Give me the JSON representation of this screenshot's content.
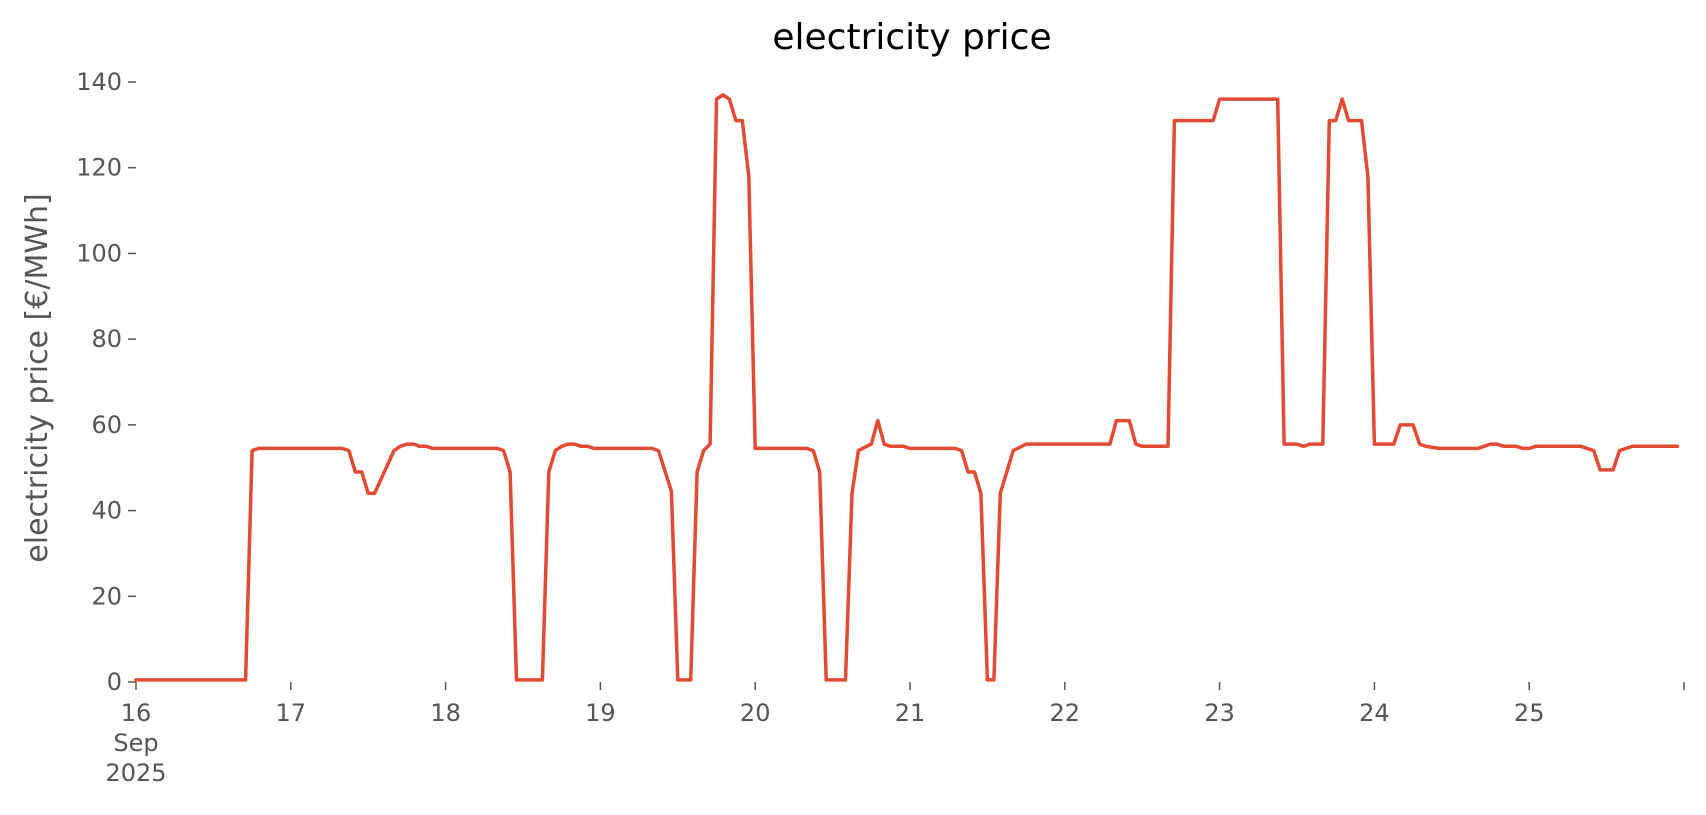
{
  "chart_data": {
    "type": "line",
    "title": "electricity price",
    "xlabel": "",
    "ylabel": "electricity price [€/MWh]",
    "ylim": [
      0,
      140
    ],
    "xlim": [
      "2025-09-16T00:00",
      "2025-09-26T00:00"
    ],
    "grid": false,
    "legend": "none",
    "y_ticks": [
      0,
      20,
      40,
      60,
      80,
      100,
      120,
      140
    ],
    "x_ticks": [
      {
        "date": "2025-09-16",
        "label": "16",
        "sublabels": [
          "Sep",
          "2025"
        ]
      },
      {
        "date": "2025-09-17",
        "label": "17",
        "sublabels": []
      },
      {
        "date": "2025-09-18",
        "label": "18",
        "sublabels": []
      },
      {
        "date": "2025-09-19",
        "label": "19",
        "sublabels": []
      },
      {
        "date": "2025-09-20",
        "label": "20",
        "sublabels": []
      },
      {
        "date": "2025-09-21",
        "label": "21",
        "sublabels": []
      },
      {
        "date": "2025-09-22",
        "label": "22",
        "sublabels": []
      },
      {
        "date": "2025-09-23",
        "label": "23",
        "sublabels": []
      },
      {
        "date": "2025-09-24",
        "label": "24",
        "sublabels": []
      },
      {
        "date": "2025-09-25",
        "label": "25",
        "sublabels": []
      },
      {
        "date": "2025-09-26",
        "label": "",
        "sublabels": []
      }
    ],
    "series": [
      {
        "color": "#e24a33",
        "points": [
          [
            "2025-09-16T00:00",
            0.5
          ],
          [
            "2025-09-16T17:00",
            0.5
          ],
          [
            "2025-09-16T18:00",
            54
          ],
          [
            "2025-09-16T19:00",
            54.5
          ],
          [
            "2025-09-17T08:00",
            54.5
          ],
          [
            "2025-09-17T09:00",
            54
          ],
          [
            "2025-09-17T10:00",
            49
          ],
          [
            "2025-09-17T11:00",
            49
          ],
          [
            "2025-09-17T12:00",
            44
          ],
          [
            "2025-09-17T13:00",
            44
          ],
          [
            "2025-09-17T16:00",
            54
          ],
          [
            "2025-09-17T17:00",
            55
          ],
          [
            "2025-09-17T18:00",
            55.5
          ],
          [
            "2025-09-17T19:00",
            55.5
          ],
          [
            "2025-09-17T20:00",
            55
          ],
          [
            "2025-09-17T21:00",
            55
          ],
          [
            "2025-09-17T22:00",
            54.5
          ],
          [
            "2025-09-18T08:00",
            54.5
          ],
          [
            "2025-09-18T09:00",
            54
          ],
          [
            "2025-09-18T10:00",
            49
          ],
          [
            "2025-09-18T11:00",
            0.5
          ],
          [
            "2025-09-18T15:00",
            0.5
          ],
          [
            "2025-09-18T16:00",
            49
          ],
          [
            "2025-09-18T17:00",
            54
          ],
          [
            "2025-09-18T18:00",
            55
          ],
          [
            "2025-09-18T19:00",
            55.5
          ],
          [
            "2025-09-18T20:00",
            55.5
          ],
          [
            "2025-09-18T21:00",
            55
          ],
          [
            "2025-09-18T22:00",
            55
          ],
          [
            "2025-09-18T23:00",
            54.5
          ],
          [
            "2025-09-19T08:00",
            54.5
          ],
          [
            "2025-09-19T09:00",
            54
          ],
          [
            "2025-09-19T11:00",
            44.5
          ],
          [
            "2025-09-19T12:00",
            0.5
          ],
          [
            "2025-09-19T14:00",
            0.5
          ],
          [
            "2025-09-19T15:00",
            49
          ],
          [
            "2025-09-19T16:00",
            54
          ],
          [
            "2025-09-19T17:00",
            55.5
          ],
          [
            "2025-09-19T18:00",
            136
          ],
          [
            "2025-09-19T19:00",
            137
          ],
          [
            "2025-09-19T20:00",
            136
          ],
          [
            "2025-09-19T21:00",
            131
          ],
          [
            "2025-09-19T22:00",
            131
          ],
          [
            "2025-09-19T23:00",
            118
          ],
          [
            "2025-09-20T00:00",
            54.5
          ],
          [
            "2025-09-20T08:00",
            54.5
          ],
          [
            "2025-09-20T09:00",
            54
          ],
          [
            "2025-09-20T10:00",
            49
          ],
          [
            "2025-09-20T11:00",
            0.5
          ],
          [
            "2025-09-20T13:00",
            0.5
          ],
          [
            "2025-09-20T14:00",
            0.5
          ],
          [
            "2025-09-20T15:00",
            44
          ],
          [
            "2025-09-20T16:00",
            54
          ],
          [
            "2025-09-20T18:00",
            55.5
          ],
          [
            "2025-09-20T19:00",
            61
          ],
          [
            "2025-09-20T20:00",
            55.5
          ],
          [
            "2025-09-20T21:00",
            55
          ],
          [
            "2025-09-20T23:00",
            55
          ],
          [
            "2025-09-21T00:00",
            54.5
          ],
          [
            "2025-09-21T07:00",
            54.5
          ],
          [
            "2025-09-21T08:00",
            54
          ],
          [
            "2025-09-21T09:00",
            49
          ],
          [
            "2025-09-21T10:00",
            49
          ],
          [
            "2025-09-21T11:00",
            44
          ],
          [
            "2025-09-21T12:00",
            0.5
          ],
          [
            "2025-09-21T13:00",
            0.5
          ],
          [
            "2025-09-21T14:00",
            44
          ],
          [
            "2025-09-21T16:00",
            54
          ],
          [
            "2025-09-21T18:00",
            55.5
          ],
          [
            "2025-09-22T07:00",
            55.5
          ],
          [
            "2025-09-22T08:00",
            61
          ],
          [
            "2025-09-22T10:00",
            61
          ],
          [
            "2025-09-22T11:00",
            55.5
          ],
          [
            "2025-09-22T12:00",
            55
          ],
          [
            "2025-09-22T16:00",
            55
          ],
          [
            "2025-09-22T17:00",
            131
          ],
          [
            "2025-09-22T23:00",
            131
          ],
          [
            "2025-09-23T00:00",
            136
          ],
          [
            "2025-09-23T09:00",
            136
          ],
          [
            "2025-09-23T10:00",
            55.5
          ],
          [
            "2025-09-23T12:00",
            55.5
          ],
          [
            "2025-09-23T13:00",
            55
          ],
          [
            "2025-09-23T14:00",
            55.5
          ],
          [
            "2025-09-23T16:00",
            55.5
          ],
          [
            "2025-09-23T17:00",
            131
          ],
          [
            "2025-09-23T18:00",
            131
          ],
          [
            "2025-09-23T19:00",
            136
          ],
          [
            "2025-09-23T20:00",
            131
          ],
          [
            "2025-09-23T22:00",
            131
          ],
          [
            "2025-09-23T23:00",
            118
          ],
          [
            "2025-09-24T00:00",
            55.5
          ],
          [
            "2025-09-24T03:00",
            55.5
          ],
          [
            "2025-09-24T04:00",
            60
          ],
          [
            "2025-09-24T06:00",
            60
          ],
          [
            "2025-09-24T07:00",
            55.5
          ],
          [
            "2025-09-24T08:00",
            55
          ],
          [
            "2025-09-24T10:00",
            54.5
          ],
          [
            "2025-09-24T16:00",
            54.5
          ],
          [
            "2025-09-24T17:00",
            55
          ],
          [
            "2025-09-24T18:00",
            55.5
          ],
          [
            "2025-09-24T19:00",
            55.5
          ],
          [
            "2025-09-24T20:00",
            55
          ],
          [
            "2025-09-24T22:00",
            55
          ],
          [
            "2025-09-24T23:00",
            54.5
          ],
          [
            "2025-09-25T00:00",
            54.5
          ],
          [
            "2025-09-25T01:00",
            55
          ],
          [
            "2025-09-25T08:00",
            55
          ],
          [
            "2025-09-25T10:00",
            54
          ],
          [
            "2025-09-25T11:00",
            49.5
          ],
          [
            "2025-09-25T13:00",
            49.5
          ],
          [
            "2025-09-25T14:00",
            54
          ],
          [
            "2025-09-25T16:00",
            55
          ],
          [
            "2025-09-25T23:00",
            55
          ]
        ]
      }
    ]
  }
}
